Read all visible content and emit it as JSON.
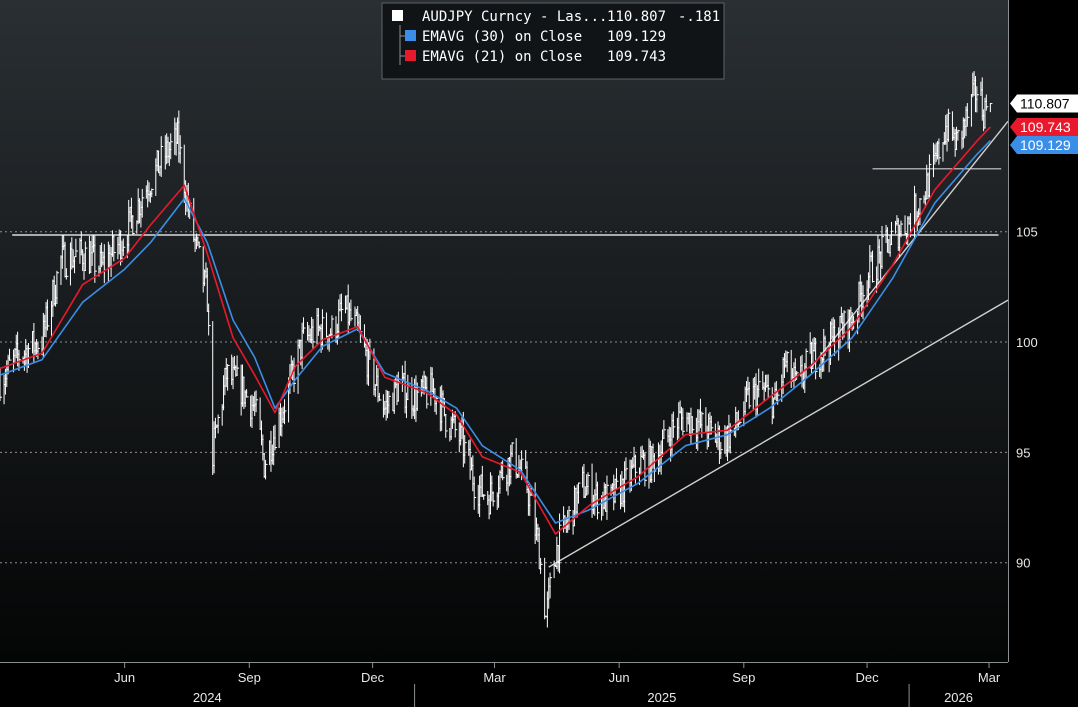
{
  "chart_data": {
    "type": "line",
    "instrument": "AUDJPY Curncy",
    "ylim": [
      85.5,
      115.5
    ],
    "y_ticks": [
      90,
      95,
      100,
      105
    ],
    "x_month_ticks": [
      "Jun",
      "Sep",
      "Dec",
      "Mar",
      "Jun",
      "Sep",
      "Dec",
      "Mar"
    ],
    "x_month_dates": [
      "2024-06-01",
      "2024-09-01",
      "2024-12-01",
      "2025-03-01",
      "2025-06-01",
      "2025-09-01",
      "2025-12-01",
      "2026-03-01"
    ],
    "x_years": [
      "2024",
      "2025",
      "2026"
    ],
    "x_year_dividers": [
      "2025-01-01",
      "2026-01-01"
    ],
    "x_range": [
      "2024-03-01",
      "2026-03-15"
    ],
    "legend": [
      {
        "label": "AUDJPY Curncy - Las...",
        "value": "110.807",
        "change": "-.181",
        "color": "#ffffff"
      },
      {
        "label": "EMAVG (30)  on Close",
        "value": "109.129",
        "color": "#3b8ee8"
      },
      {
        "label": "EMAVG (21)  on Close",
        "value": "109.743",
        "color": "#e8192c"
      }
    ],
    "last_value_tags": [
      {
        "text": "110.807",
        "value": 110.807,
        "bg": "#ffffff",
        "fg": "#000000"
      },
      {
        "text": "109.743",
        "value": 109.743,
        "bg": "#e8192c",
        "fg": "#ffffff"
      },
      {
        "text": "109.129",
        "value": 109.129,
        "bg": "#3b8ee8",
        "fg": "#ffffff"
      }
    ],
    "series": [
      {
        "name": "AUDJPY Curncy",
        "style": "close",
        "color": "#ffffff",
        "points": [
          [
            "2024-03-01",
            98.3
          ],
          [
            "2024-03-15",
            99.4
          ],
          [
            "2024-04-01",
            100.1
          ],
          [
            "2024-04-15",
            103.7
          ],
          [
            "2024-05-01",
            104.0
          ],
          [
            "2024-05-15",
            103.4
          ],
          [
            "2024-06-01",
            104.8
          ],
          [
            "2024-06-15",
            106.8
          ],
          [
            "2024-07-01",
            108.5
          ],
          [
            "2024-07-10",
            109.2
          ],
          [
            "2024-07-20",
            105.3
          ],
          [
            "2024-08-01",
            102.0
          ],
          [
            "2024-08-05",
            95.0
          ],
          [
            "2024-08-15",
            98.5
          ],
          [
            "2024-08-25",
            98.0
          ],
          [
            "2024-09-05",
            97.0
          ],
          [
            "2024-09-12",
            94.5
          ],
          [
            "2024-09-20",
            96.0
          ],
          [
            "2024-10-01",
            98.0
          ],
          [
            "2024-10-10",
            100.0
          ],
          [
            "2024-10-20",
            100.5
          ],
          [
            "2024-11-01",
            100.5
          ],
          [
            "2024-11-10",
            101.5
          ],
          [
            "2024-11-20",
            100.5
          ],
          [
            "2024-12-01",
            98.5
          ],
          [
            "2024-12-10",
            97.0
          ],
          [
            "2024-12-20",
            98.0
          ],
          [
            "2025-01-01",
            97.5
          ],
          [
            "2025-01-15",
            97.8
          ],
          [
            "2025-01-25",
            96.5
          ],
          [
            "2025-02-05",
            95.5
          ],
          [
            "2025-02-15",
            93.5
          ],
          [
            "2025-02-25",
            93.0
          ],
          [
            "2025-03-05",
            94.0
          ],
          [
            "2025-03-15",
            94.8
          ],
          [
            "2025-03-25",
            93.5
          ],
          [
            "2025-04-03",
            90.5
          ],
          [
            "2025-04-08",
            87.5
          ],
          [
            "2025-04-15",
            90.5
          ],
          [
            "2025-04-25",
            92.0
          ],
          [
            "2025-05-05",
            93.5
          ],
          [
            "2025-05-15",
            93.0
          ],
          [
            "2025-05-25",
            92.8
          ],
          [
            "2025-06-05",
            93.5
          ],
          [
            "2025-06-15",
            94.5
          ],
          [
            "2025-06-25",
            94.5
          ],
          [
            "2025-07-05",
            95.5
          ],
          [
            "2025-07-15",
            96.5
          ],
          [
            "2025-07-25",
            96.5
          ],
          [
            "2025-08-05",
            96.0
          ],
          [
            "2025-08-15",
            95.5
          ],
          [
            "2025-08-25",
            96.0
          ],
          [
            "2025-09-05",
            97.5
          ],
          [
            "2025-09-15",
            97.8
          ],
          [
            "2025-09-25",
            97.2
          ],
          [
            "2025-10-01",
            99.0
          ],
          [
            "2025-10-10",
            98.0
          ],
          [
            "2025-10-20",
            99.2
          ],
          [
            "2025-11-01",
            99.8
          ],
          [
            "2025-11-10",
            100.5
          ],
          [
            "2025-11-20",
            101.0
          ],
          [
            "2025-12-01",
            103.0
          ],
          [
            "2025-12-10",
            103.8
          ],
          [
            "2025-12-20",
            104.8
          ],
          [
            "2026-01-01",
            105.5
          ],
          [
            "2026-01-10",
            106.5
          ],
          [
            "2026-01-20",
            108.0
          ],
          [
            "2026-01-28",
            109.8
          ],
          [
            "2026-02-05",
            109.0
          ],
          [
            "2026-02-12",
            110.0
          ],
          [
            "2026-02-20",
            111.5
          ],
          [
            "2026-02-25",
            110.5
          ],
          [
            "2026-03-02",
            110.807
          ]
        ]
      },
      {
        "name": "EMAVG (30) on Close",
        "color": "#3b8ee8",
        "points": [
          [
            "2024-03-01",
            98.5
          ],
          [
            "2024-04-01",
            99.2
          ],
          [
            "2024-05-01",
            101.8
          ],
          [
            "2024-06-01",
            103.3
          ],
          [
            "2024-06-20",
            104.5
          ],
          [
            "2024-07-15",
            106.5
          ],
          [
            "2024-08-01",
            104.5
          ],
          [
            "2024-08-20",
            101.0
          ],
          [
            "2024-09-05",
            99.3
          ],
          [
            "2024-09-20",
            97.0
          ],
          [
            "2024-10-05",
            98.3
          ],
          [
            "2024-10-25",
            99.8
          ],
          [
            "2024-11-20",
            100.6
          ],
          [
            "2024-12-10",
            98.6
          ],
          [
            "2025-01-10",
            97.8
          ],
          [
            "2025-02-01",
            97.0
          ],
          [
            "2025-02-20",
            95.3
          ],
          [
            "2025-03-20",
            94.2
          ],
          [
            "2025-04-15",
            91.8
          ],
          [
            "2025-05-10",
            92.4
          ],
          [
            "2025-06-15",
            93.6
          ],
          [
            "2025-07-20",
            95.3
          ],
          [
            "2025-08-20",
            95.8
          ],
          [
            "2025-09-20",
            97.0
          ],
          [
            "2025-10-20",
            98.5
          ],
          [
            "2025-11-20",
            100.2
          ],
          [
            "2025-12-20",
            102.9
          ],
          [
            "2026-01-20",
            106.3
          ],
          [
            "2026-02-20",
            108.5
          ],
          [
            "2026-03-02",
            109.129
          ]
        ]
      },
      {
        "name": "EMAVG (21) on Close",
        "color": "#e8192c",
        "points": [
          [
            "2024-03-01",
            98.8
          ],
          [
            "2024-04-01",
            99.5
          ],
          [
            "2024-05-01",
            102.6
          ],
          [
            "2024-06-01",
            103.8
          ],
          [
            "2024-06-20",
            105.3
          ],
          [
            "2024-07-15",
            107.1
          ],
          [
            "2024-08-01",
            104.0
          ],
          [
            "2024-08-20",
            100.2
          ],
          [
            "2024-09-05",
            98.5
          ],
          [
            "2024-09-20",
            96.8
          ],
          [
            "2024-10-05",
            98.9
          ],
          [
            "2024-10-25",
            100.1
          ],
          [
            "2024-11-20",
            100.7
          ],
          [
            "2024-12-10",
            98.4
          ],
          [
            "2025-01-10",
            97.7
          ],
          [
            "2025-02-01",
            96.7
          ],
          [
            "2025-02-20",
            94.8
          ],
          [
            "2025-03-20",
            94.1
          ],
          [
            "2025-04-15",
            91.3
          ],
          [
            "2025-05-10",
            92.6
          ],
          [
            "2025-06-15",
            93.9
          ],
          [
            "2025-07-20",
            95.8
          ],
          [
            "2025-08-20",
            96.0
          ],
          [
            "2025-09-20",
            97.5
          ],
          [
            "2025-10-20",
            98.9
          ],
          [
            "2025-11-20",
            100.7
          ],
          [
            "2025-12-20",
            103.5
          ],
          [
            "2026-01-20",
            106.9
          ],
          [
            "2026-02-20",
            109.1
          ],
          [
            "2026-03-02",
            109.743
          ]
        ]
      }
    ],
    "annotations": [
      {
        "type": "hline",
        "y": 104.85,
        "from": "2024-03-10",
        "to": "2026-03-08",
        "color": "#ffffff"
      },
      {
        "type": "trendline",
        "from": [
          "2025-04-10",
          89.8
        ],
        "to": [
          "2026-03-15",
          101.9
        ],
        "color": "#d0d0d0"
      },
      {
        "type": "trendline",
        "from": [
          "2025-10-20",
          98.8
        ],
        "to": [
          "2026-03-15",
          110.0
        ],
        "color": "#d0d0d0"
      },
      {
        "type": "hline",
        "y": 107.85,
        "from": "2025-12-05",
        "to": "2026-03-10",
        "color": "#d0d0d0"
      }
    ]
  }
}
